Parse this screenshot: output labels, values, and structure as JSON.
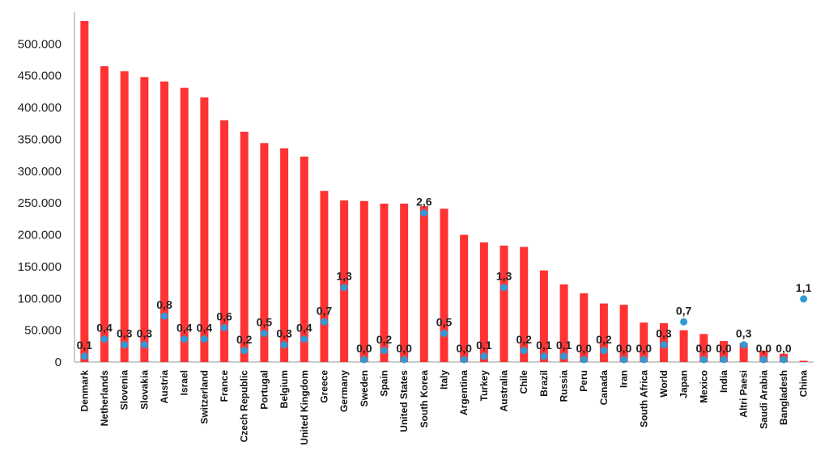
{
  "chart_data": {
    "type": "bar",
    "title": "",
    "xlabel": "",
    "ylabel": "",
    "ylim": [
      0,
      550000
    ],
    "yticks": [
      {
        "value": 0,
        "label": "0"
      },
      {
        "value": 50000,
        "label": "50.000"
      },
      {
        "value": 100000,
        "label": "100.000"
      },
      {
        "value": 150000,
        "label": "150.000"
      },
      {
        "value": 200000,
        "label": "200.000"
      },
      {
        "value": 250000,
        "label": "250.000"
      },
      {
        "value": 300000,
        "label": "300.000"
      },
      {
        "value": 350000,
        "label": "350.000"
      },
      {
        "value": 400000,
        "label": "400.000"
      },
      {
        "value": 450000,
        "label": "450.000"
      },
      {
        "value": 500000,
        "label": "500.000"
      }
    ],
    "y2lim": [
      0,
      6.1
    ],
    "grid": false,
    "legend": "none",
    "colors": {
      "bars": "#ff3333",
      "points": "#2e9bd6",
      "axis": "#999999"
    },
    "categories": [
      "Denmark",
      "Netherlands",
      "Slovenia",
      "Slovakia",
      "Austria",
      "Israel",
      "Switzerland",
      "France",
      "Czech Republic",
      "Portugal",
      "Belgium",
      "United Kingdom",
      "Greece",
      "Germany",
      "Sweden",
      "Spain",
      "United States",
      "South Korea",
      "Italy",
      "Argentina",
      "Turkey",
      "Australia",
      "Chile",
      "Brazil",
      "Russia",
      "Peru",
      "Canada",
      "Iran",
      "South Africa",
      "World",
      "Japan",
      "Mexico",
      "India",
      "Altri Paesi",
      "Saudi Arabia",
      "Bangladesh",
      "China"
    ],
    "series": [
      {
        "type": "bar",
        "values": [
          536000,
          465000,
          457000,
          448000,
          441000,
          431000,
          416000,
          380000,
          362000,
          344000,
          336000,
          323000,
          269000,
          254000,
          253000,
          249000,
          249000,
          245000,
          241000,
          200000,
          188000,
          183000,
          181000,
          144000,
          122000,
          108000,
          92000,
          90000,
          62000,
          61000,
          50000,
          44000,
          33000,
          30000,
          18000,
          13000,
          2000
        ]
      },
      {
        "type": "scatter",
        "values": [
          0.1,
          0.4,
          0.3,
          0.3,
          0.8,
          0.4,
          0.4,
          0.6,
          0.2,
          0.5,
          0.3,
          0.4,
          0.7,
          1.3,
          0.0,
          0.2,
          0.0,
          2.6,
          0.5,
          0.0,
          0.1,
          1.3,
          0.2,
          0.1,
          0.1,
          0.0,
          0.2,
          0.0,
          0.0,
          0.3,
          0.7,
          0.0,
          0.0,
          0.3,
          0.0,
          0.0,
          1.1
        ],
        "labels": [
          "0,1",
          "0,4",
          "0,3",
          "0,3",
          "0,8",
          "0,4",
          "0,4",
          "0,6",
          "0,2",
          "0,5",
          "0,3",
          "0,4",
          "0,7",
          "1,3",
          "0,0",
          "0,2",
          "0,0",
          "2,6",
          "0,5",
          "0,0",
          "0,1",
          "1,3",
          "0,2",
          "0,1",
          "0,1",
          "0,0",
          "0,2",
          "0,0",
          "0,0",
          "0,3",
          "0,7",
          "0,0",
          "0,0",
          "0,3",
          "0,0",
          "0,0",
          "1,1"
        ]
      }
    ]
  }
}
